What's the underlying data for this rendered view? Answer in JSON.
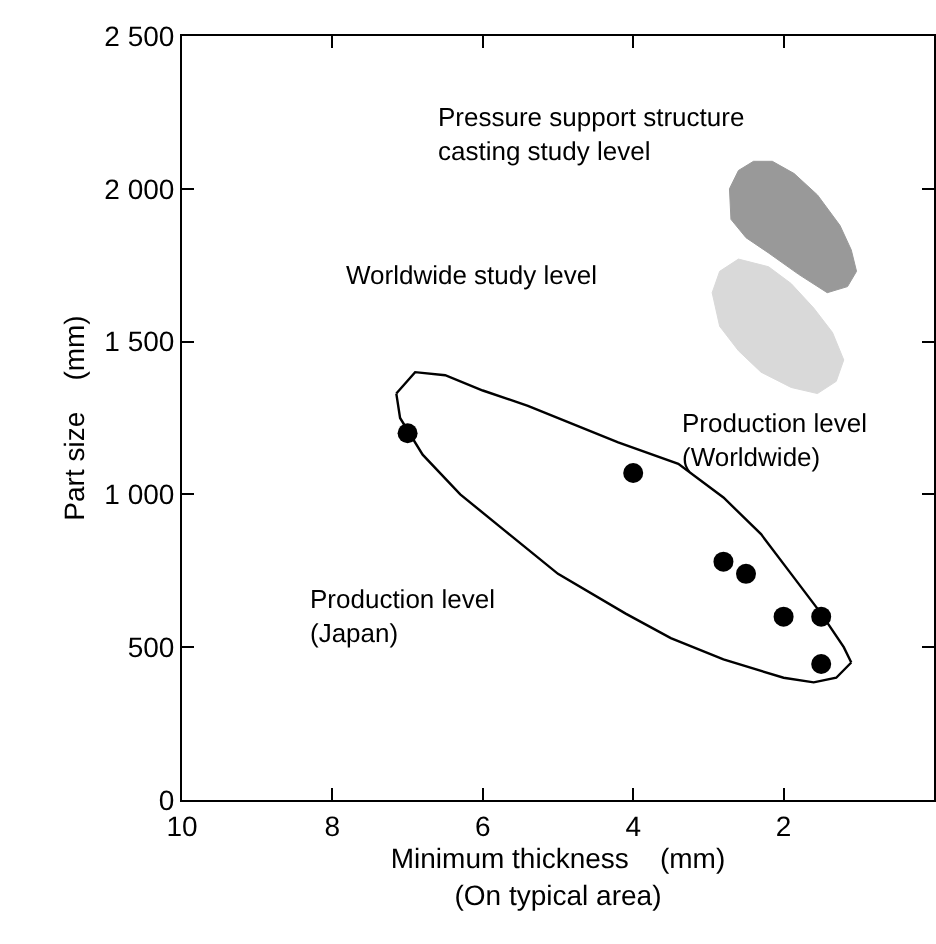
{
  "chart_data": {
    "type": "scatter",
    "xlabel": "Minimum thickness    (mm)\n(On typical area)",
    "ylabel": "Part size    (mm)",
    "xlim": [
      10,
      0
    ],
    "xticks": [
      10,
      8,
      6,
      4,
      2
    ],
    "ylim": [
      0,
      2500
    ],
    "yticks": [
      0,
      {
        "value": 500,
        "label": "500"
      },
      {
        "value": 1000,
        "label": "1 000"
      },
      {
        "value": 1500,
        "label": "1 500"
      },
      {
        "value": 2000,
        "label": "2 000"
      },
      {
        "value": 2500,
        "label": "2 500"
      }
    ],
    "series": [
      {
        "type": "area",
        "color": "#999999",
        "x": [
          2.4,
          2.6,
          2.72,
          2.7,
          2.5,
          2.2,
          1.8,
          1.42,
          1.15,
          1.03,
          1.1,
          1.25,
          1.55,
          1.86,
          2.15,
          2.4
        ],
        "values": [
          2090,
          2060,
          2000,
          1900,
          1840,
          1790,
          1720,
          1660,
          1680,
          1730,
          1800,
          1880,
          1980,
          2050,
          2090,
          2090
        ]
      },
      {
        "type": "area",
        "color": "#d9d9d9",
        "x": [
          2.6,
          2.85,
          2.95,
          2.85,
          2.6,
          2.3,
          1.9,
          1.55,
          1.3,
          1.2,
          1.35,
          1.6,
          1.9,
          2.2,
          2.6
        ],
        "values": [
          1770,
          1730,
          1660,
          1550,
          1470,
          1400,
          1350,
          1330,
          1370,
          1440,
          1530,
          1610,
          1690,
          1745,
          1770
        ]
      },
      {
        "type": "line",
        "color": "#000000",
        "marker": "none",
        "x": [
          7.15,
          6.9,
          6.5,
          6.0,
          5.4,
          4.8,
          4.2,
          3.4,
          2.8,
          2.3,
          1.9,
          1.5,
          1.2,
          1.1
        ],
        "values": [
          1330,
          1400,
          1390,
          1340,
          1290,
          1230,
          1170,
          1100,
          990,
          870,
          740,
          610,
          500,
          450
        ]
      },
      {
        "type": "line",
        "color": "#000000",
        "marker": "none",
        "x": [
          7.15,
          7.1,
          6.8,
          6.3,
          5.7,
          5.0,
          4.1,
          3.5,
          2.8,
          2.0,
          1.6,
          1.3,
          1.1
        ],
        "values": [
          1330,
          1250,
          1130,
          1000,
          880,
          740,
          610,
          530,
          460,
          400,
          385,
          400,
          450
        ]
      },
      {
        "color": "#000000",
        "marker": "circle",
        "x": [
          7.0,
          4.0,
          2.8,
          2.5,
          2.0,
          1.5,
          1.5
        ],
        "values": [
          1200,
          1070,
          780,
          740,
          600,
          600,
          445
        ]
      }
    ],
    "annotations": [
      "Pressure support structure\ncasting study level",
      "Worldwide study level",
      "Production level\n(Worldwide)",
      "Production level\n(Japan)"
    ]
  }
}
